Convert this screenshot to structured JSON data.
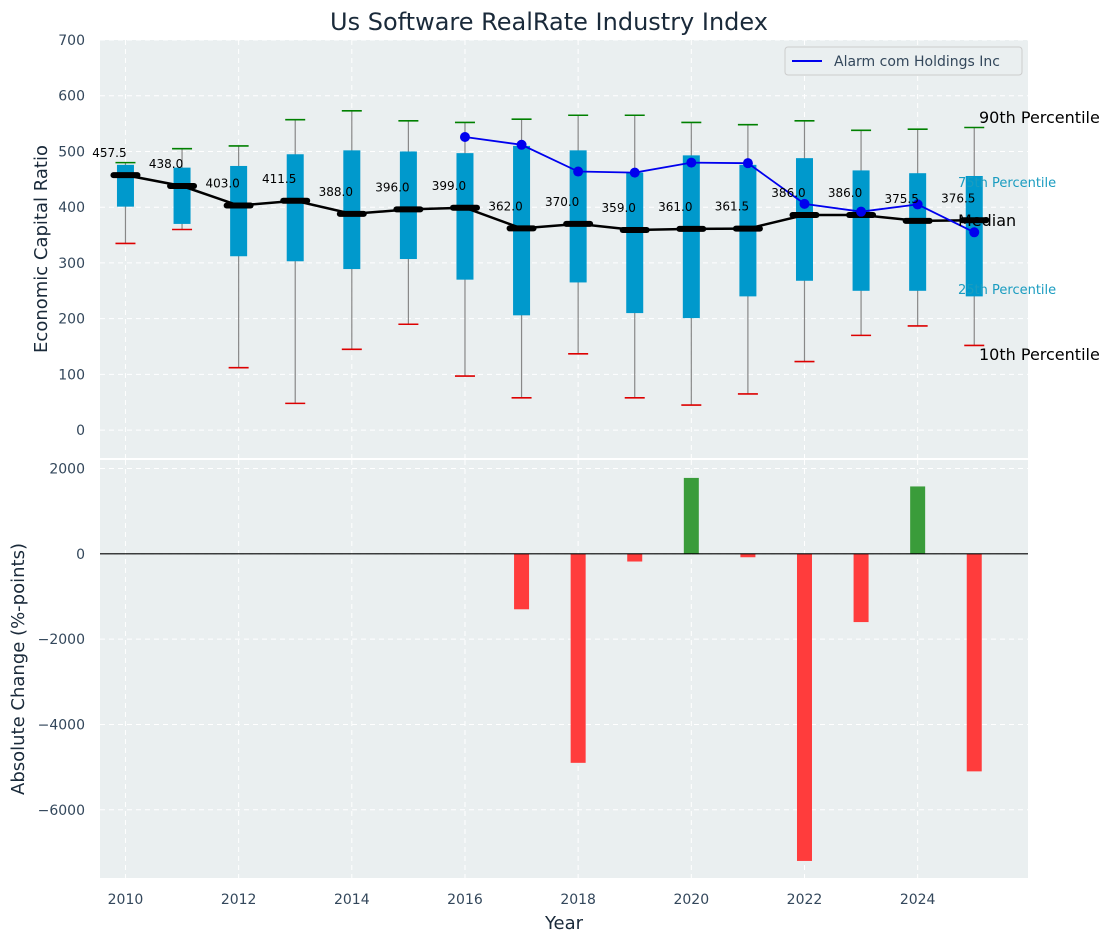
{
  "colors": {
    "panel_bg": "#eaeff0",
    "box_fill": "#0099cc",
    "whisker_top": "#008000",
    "whisker_bottom": "#dd0000",
    "whisker_line": "#888888",
    "median_line": "#000000",
    "company_line": "#0000ee",
    "pos_bar": "#3a9c3a",
    "neg_bar": "#ff3c3c",
    "percentile_label": "#1a9cc0"
  },
  "chart_data": [
    {
      "type": "box",
      "title": "Us Software RealRate Industry Index",
      "ylabel": "Economic Capital Ratio",
      "ylim": [
        -50,
        700
      ],
      "yticks": [
        0,
        100,
        200,
        300,
        400,
        500,
        600,
        700
      ],
      "years": [
        2010,
        2011,
        2012,
        2013,
        2014,
        2015,
        2016,
        2017,
        2018,
        2019,
        2020,
        2021,
        2022,
        2023,
        2024,
        2025
      ],
      "p10": [
        335,
        360,
        112,
        48,
        145,
        190,
        97,
        58,
        137,
        58,
        45,
        65,
        123,
        170,
        187,
        152
      ],
      "p25": [
        401,
        370,
        312,
        303,
        289,
        307,
        270,
        206,
        265,
        210,
        201,
        240,
        268,
        250,
        250,
        240
      ],
      "median": [
        457.5,
        438.0,
        403.0,
        411.5,
        388.0,
        396.0,
        399.0,
        362.0,
        370.0,
        359.0,
        361.0,
        361.5,
        386.0,
        386.0,
        375.5,
        376.5
      ],
      "median_labels": [
        "457.5",
        "438.0",
        "403.0",
        "411.5",
        "388.0",
        "396.0",
        "399.0",
        "362.0",
        "370.0",
        "359.0",
        "361.0",
        "361.5",
        "386.0",
        "386.0",
        "375.5",
        "376.5"
      ],
      "p75": [
        476,
        471,
        474,
        495,
        502,
        500,
        497,
        510,
        502,
        462,
        493,
        476,
        488,
        466,
        461,
        456
      ],
      "p90": [
        480,
        505,
        510,
        557,
        573,
        555,
        552,
        558,
        565,
        565,
        552,
        548,
        555,
        538,
        540,
        543
      ],
      "series": [
        {
          "name": "Alarm com Holdings Inc",
          "x": [
            2016,
            2017,
            2018,
            2019,
            2020,
            2021,
            2022,
            2023,
            2024,
            2025
          ],
          "values": [
            526,
            512,
            464,
            462,
            480,
            479,
            406,
            392,
            405,
            355
          ]
        }
      ],
      "legend": {
        "position": "top-right",
        "entries": [
          "Alarm com Holdings Inc"
        ]
      },
      "annotations": {
        "p90": "90th Percentile",
        "p75": "75th Percentile",
        "median": "Median",
        "p25": "25th Percentile",
        "p10": "10th Percentile"
      },
      "grid": true
    },
    {
      "type": "bar",
      "xlabel": "Year",
      "ylabel": "Absolute Change (%-points)",
      "ylim": [
        -7600,
        2200
      ],
      "yticks": [
        -6000,
        -4000,
        -2000,
        0,
        2000
      ],
      "ytick_labels": [
        "−6000",
        "−4000",
        "−2000",
        "0",
        "2000"
      ],
      "xticks": [
        2010,
        2012,
        2014,
        2016,
        2018,
        2020,
        2022,
        2024
      ],
      "x": [
        2017,
        2018,
        2019,
        2020,
        2021,
        2022,
        2023,
        2024,
        2025
      ],
      "values": [
        -1300,
        -4900,
        -180,
        1780,
        -80,
        -7200,
        -1600,
        1580,
        -5100
      ],
      "grid": true
    }
  ]
}
